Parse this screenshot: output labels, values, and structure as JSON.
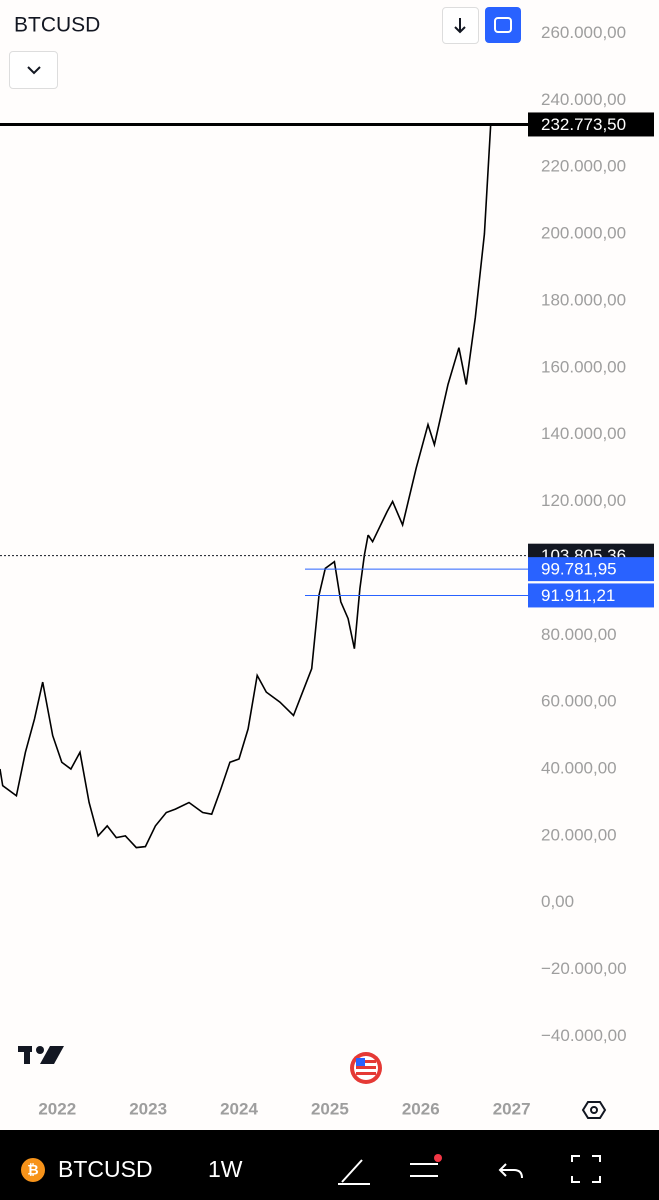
{
  "chart_data": {
    "type": "line",
    "title": "BTCUSD",
    "xlim": [
      2021.37,
      2027.18
    ],
    "ylim": [
      -56000,
      270000
    ],
    "xticks": [
      2022,
      2023,
      2024,
      2025,
      2026,
      2027
    ],
    "yticks": [
      {
        "value": -40000,
        "label": "−40.000,00"
      },
      {
        "value": -20000,
        "label": "−20.000,00"
      },
      {
        "value": 0,
        "label": "0,00"
      },
      {
        "value": 20000,
        "label": "20.000,00"
      },
      {
        "value": 40000,
        "label": "40.000,00"
      },
      {
        "value": 60000,
        "label": "60.000,00"
      },
      {
        "value": 80000,
        "label": "80.000,00"
      },
      {
        "value": 120000,
        "label": "120.000,00"
      },
      {
        "value": 140000,
        "label": "140.000,00"
      },
      {
        "value": 160000,
        "label": "160.000,00"
      },
      {
        "value": 180000,
        "label": "180.000,00"
      },
      {
        "value": 200000,
        "label": "200.000,00"
      },
      {
        "value": 220000,
        "label": "220.000,00"
      },
      {
        "value": 240000,
        "label": "240.000,00"
      },
      {
        "value": 260000,
        "label": "260.000,00"
      }
    ],
    "series": [
      {
        "color": "#000000",
        "x": [
          2021.37,
          2021.4,
          2021.55,
          2021.65,
          2021.75,
          2021.84,
          2021.95,
          2022.05,
          2022.15,
          2022.25,
          2022.35,
          2022.45,
          2022.55,
          2022.65,
          2022.75,
          2022.87,
          2022.97,
          2023.08,
          2023.2,
          2023.3,
          2023.45,
          2023.6,
          2023.7,
          2023.8,
          2023.9,
          2024.0,
          2024.1,
          2024.2,
          2024.3,
          2024.45,
          2024.6,
          2024.7,
          2024.8,
          2024.88,
          2024.95,
          2025.05,
          2025.12,
          2025.2,
          2025.27,
          2025.33,
          2025.38,
          2025.42
        ],
        "values": [
          40000,
          35000,
          32000,
          45000,
          55000,
          66000,
          50000,
          42000,
          40000,
          45000,
          30000,
          20000,
          23000,
          19500,
          20000,
          16500,
          16800,
          23000,
          27000,
          28000,
          30000,
          27000,
          26500,
          34000,
          42000,
          43000,
          52000,
          68000,
          63000,
          60000,
          56000,
          63000,
          70000,
          92000,
          100000,
          102000,
          90000,
          85000,
          76000,
          94000,
          104000,
          110000
        ]
      },
      {
        "color": "#000000",
        "x": [
          2025.42,
          2025.47,
          2025.63,
          2025.69,
          2025.8,
          2025.95,
          2026.08,
          2026.15,
          2026.3,
          2026.42,
          2026.5,
          2026.6,
          2026.7,
          2026.77
        ],
        "values": [
          110000,
          108000,
          117000,
          120000,
          113000,
          130000,
          143000,
          137000,
          155000,
          166000,
          155000,
          175000,
          200000,
          232773.5
        ]
      }
    ],
    "price_lines": [
      {
        "value": 232773.5,
        "label": "232.773,50",
        "color": "#000000"
      },
      {
        "value": 103805.36,
        "label": "103.805,36",
        "color": "#131722"
      },
      {
        "value": 99781.95,
        "label": "99.781,95",
        "color": "#2962ff"
      },
      {
        "value": 91911.21,
        "label": "91.911,21",
        "color": "#2962ff"
      }
    ]
  },
  "toolbar": {
    "symbol": "BTCUSD",
    "interval": "1W"
  }
}
